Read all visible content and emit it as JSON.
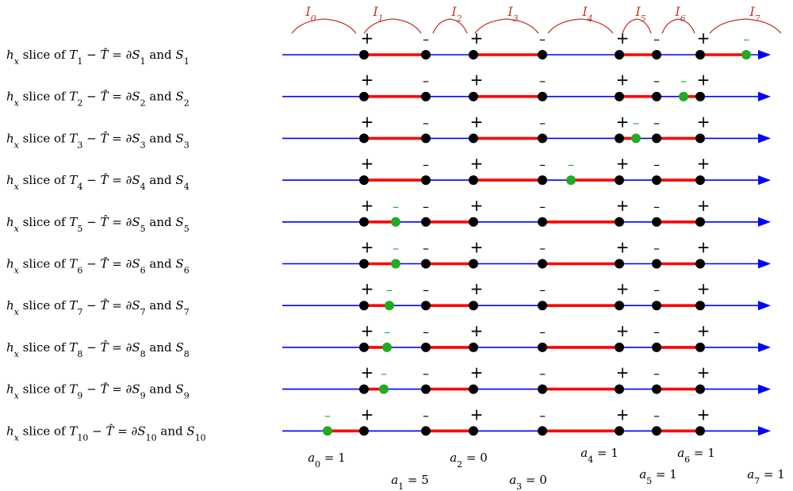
{
  "colors": {
    "axis": "#0000ff",
    "segment": "#ff0000",
    "point": "#000000",
    "green": "#22aa22",
    "interval": "#c0392b"
  },
  "breakpoints": [
    {
      "x": 459,
      "sign": "+"
    },
    {
      "x": 537,
      "sign": "–"
    },
    {
      "x": 597,
      "sign": "+"
    },
    {
      "x": 684,
      "sign": "–"
    },
    {
      "x": 781,
      "sign": "+"
    },
    {
      "x": 828,
      "sign": "–"
    },
    {
      "x": 883,
      "sign": "+"
    }
  ],
  "interval_labels": [
    {
      "text": "I",
      "sub": "0"
    },
    {
      "text": "I",
      "sub": "1"
    },
    {
      "text": "I",
      "sub": "2"
    },
    {
      "text": "I",
      "sub": "3"
    },
    {
      "text": "I",
      "sub": "4"
    },
    {
      "text": "I",
      "sub": "5"
    },
    {
      "text": "I",
      "sub": "6"
    },
    {
      "text": "I",
      "sub": "7"
    }
  ],
  "rows": [
    {
      "T": "T",
      "Tsub": "1",
      "S": "S",
      "Ssub": "1",
      "green_x": 941,
      "green_sign": "–",
      "segments": [
        [
          459,
          537
        ],
        [
          597,
          684
        ],
        [
          781,
          828
        ],
        [
          883,
          941
        ]
      ]
    },
    {
      "T": "T",
      "Tsub": "2",
      "S": "S",
      "Ssub": "2",
      "green_x": 862,
      "green_sign": "–",
      "segments": [
        [
          459,
          537
        ],
        [
          597,
          684
        ],
        [
          781,
          828
        ],
        [
          862,
          883
        ]
      ]
    },
    {
      "T": "T",
      "Tsub": "3",
      "S": "S",
      "Ssub": "3",
      "green_x": 802,
      "green_sign": "–",
      "segments": [
        [
          459,
          537
        ],
        [
          597,
          684
        ],
        [
          781,
          802
        ],
        [
          828,
          883
        ]
      ]
    },
    {
      "T": "T",
      "Tsub": "4",
      "S": "S",
      "Ssub": "4",
      "green_x": 720,
      "green_sign": "–",
      "segments": [
        [
          459,
          537
        ],
        [
          597,
          684
        ],
        [
          720,
          781
        ],
        [
          828,
          883
        ]
      ]
    },
    {
      "T": "T",
      "Tsub": "5",
      "S": "S",
      "Ssub": "5",
      "green_x": 499,
      "green_sign": "–",
      "segments": [
        [
          459,
          499
        ],
        [
          537,
          597
        ],
        [
          684,
          781
        ],
        [
          828,
          883
        ]
      ]
    },
    {
      "T": "T",
      "Tsub": "6",
      "S": "S",
      "Ssub": "6",
      "green_x": 499,
      "green_sign": "–",
      "segments": [
        [
          459,
          499
        ],
        [
          537,
          597
        ],
        [
          684,
          781
        ],
        [
          828,
          883
        ]
      ]
    },
    {
      "T": "T",
      "Tsub": "7",
      "S": "S",
      "Ssub": "7",
      "green_x": 491,
      "green_sign": "–",
      "segments": [
        [
          459,
          491
        ],
        [
          537,
          597
        ],
        [
          684,
          781
        ],
        [
          828,
          883
        ]
      ]
    },
    {
      "T": "T",
      "Tsub": "8",
      "S": "S",
      "Ssub": "8",
      "green_x": 488,
      "green_sign": "–",
      "segments": [
        [
          459,
          488
        ],
        [
          537,
          597
        ],
        [
          684,
          781
        ],
        [
          828,
          883
        ]
      ]
    },
    {
      "T": "T",
      "Tsub": "9",
      "S": "S",
      "Ssub": "9",
      "green_x": 484,
      "green_sign": "–",
      "segments": [
        [
          459,
          484
        ],
        [
          537,
          597
        ],
        [
          684,
          781
        ],
        [
          828,
          883
        ]
      ]
    },
    {
      "T": "T",
      "Tsub": "10",
      "S": "S",
      "Ssub": "10",
      "green_x": 413,
      "green_sign": "–",
      "segments": [
        [
          413,
          459
        ],
        [
          537,
          597
        ],
        [
          684,
          781
        ],
        [
          828,
          883
        ]
      ]
    }
  ],
  "label_parts": {
    "h": "h",
    "hsub": "x",
    "slice_of": " slice of ",
    "minus": " − ",
    "That": "T",
    "equals": " = ∂",
    "and": " and "
  },
  "coefficients": [
    {
      "name": "a",
      "sub": "0",
      "value": "= 1"
    },
    {
      "name": "a",
      "sub": "1",
      "value": "= 5"
    },
    {
      "name": "a",
      "sub": "2",
      "value": "= 0"
    },
    {
      "name": "a",
      "sub": "3",
      "value": "= 0"
    },
    {
      "name": "a",
      "sub": "4",
      "value": "= 1"
    },
    {
      "name": "a",
      "sub": "5",
      "value": "= 1"
    },
    {
      "name": "a",
      "sub": "6",
      "value": "= 1"
    },
    {
      "name": "a",
      "sub": "7",
      "value": "= 1"
    }
  ]
}
